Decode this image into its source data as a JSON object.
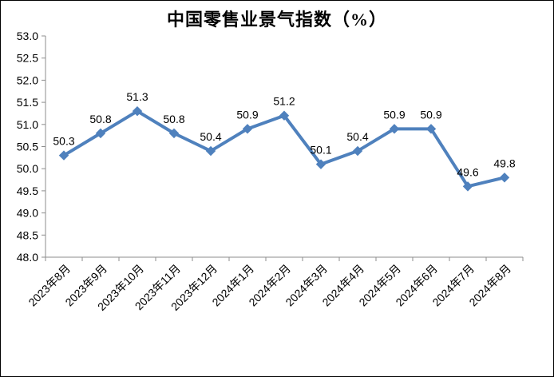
{
  "chart_data": {
    "type": "line",
    "title": "中国零售业景气指数（%）",
    "categories": [
      "2023年8月",
      "2023年9月",
      "2023年10月",
      "2023年11月",
      "2023年12月",
      "2024年1月",
      "2024年2月",
      "2024年3月",
      "2024年4月",
      "2024年5月",
      "2024年6月",
      "2024年7月",
      "2024年8月"
    ],
    "values": [
      50.3,
      50.8,
      51.3,
      50.8,
      50.4,
      50.9,
      51.2,
      50.1,
      50.4,
      50.9,
      50.9,
      49.6,
      49.8
    ],
    "data_labels": [
      "50.3",
      "50.8",
      "51.3",
      "50.8",
      "50.4",
      "50.9",
      "51.2",
      "50.1",
      "50.4",
      "50.9",
      "50.9",
      "49.6",
      "49.8"
    ],
    "xlabel": "",
    "ylabel": "",
    "ylim": [
      48.0,
      53.0
    ],
    "ytick_step": 0.5,
    "yticks": [
      "48.0",
      "48.5",
      "49.0",
      "49.5",
      "50.0",
      "50.5",
      "51.0",
      "51.5",
      "52.0",
      "52.5",
      "53.0"
    ],
    "x_label_rotation": -45,
    "grid": false,
    "legend": "none",
    "marker": "diamond",
    "data_label_position": "above",
    "colors": {
      "series": "#4F81BD",
      "axis": "#8E8E8E",
      "text": "#000000",
      "background": "#FFFFFF",
      "frame_border": "#000000"
    }
  }
}
